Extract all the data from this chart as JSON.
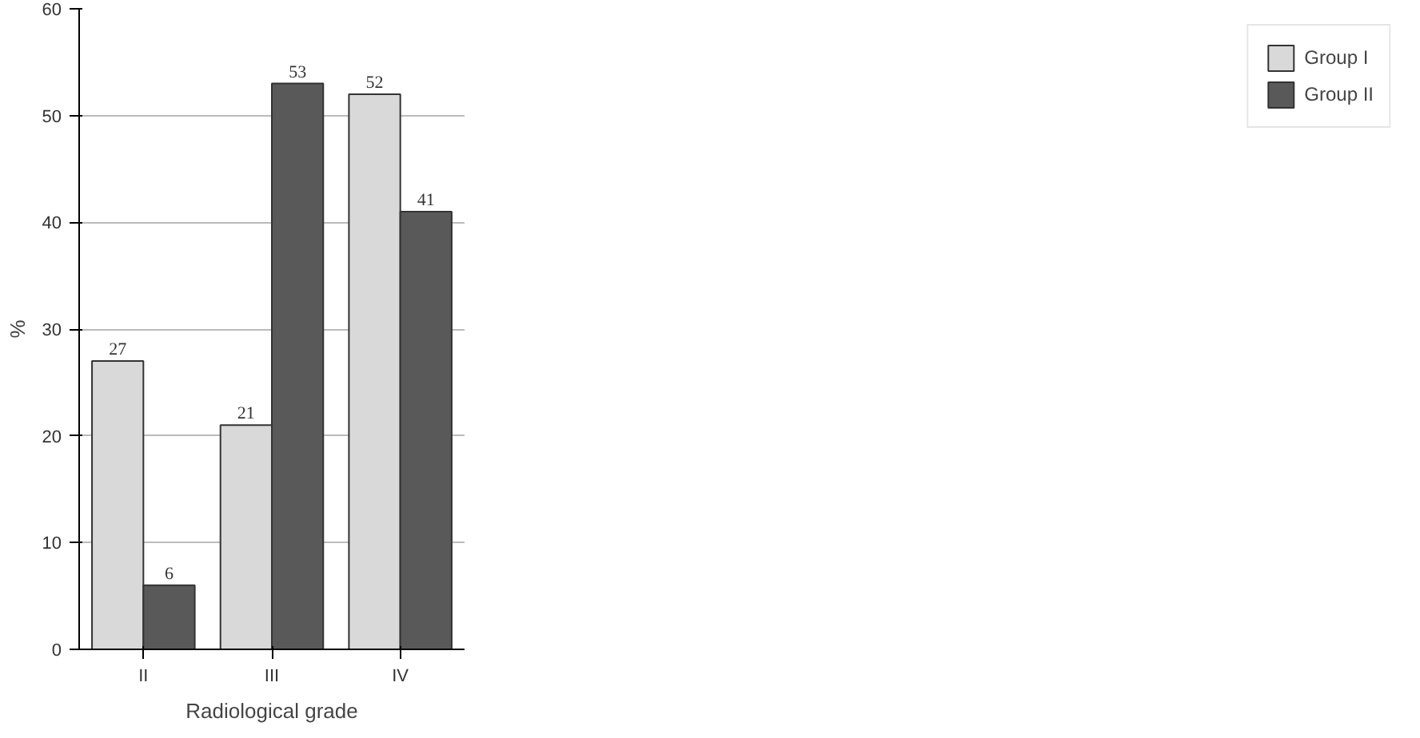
{
  "chart_data": {
    "type": "bar",
    "xlabel": "Radiological grade",
    "ylabel": "%",
    "categories": [
      "II",
      "III",
      "IV"
    ],
    "series": [
      {
        "name": "Group I",
        "color": "#d9d9d9",
        "values": [
          27,
          21,
          52
        ]
      },
      {
        "name": "Group II",
        "color": "#595959",
        "values": [
          6,
          53,
          41
        ]
      }
    ],
    "ylim": [
      0,
      60
    ],
    "yticks": [
      0,
      10,
      20,
      30,
      40,
      50,
      60
    ],
    "grid": "y",
    "legend": "right",
    "data_labels": true
  }
}
